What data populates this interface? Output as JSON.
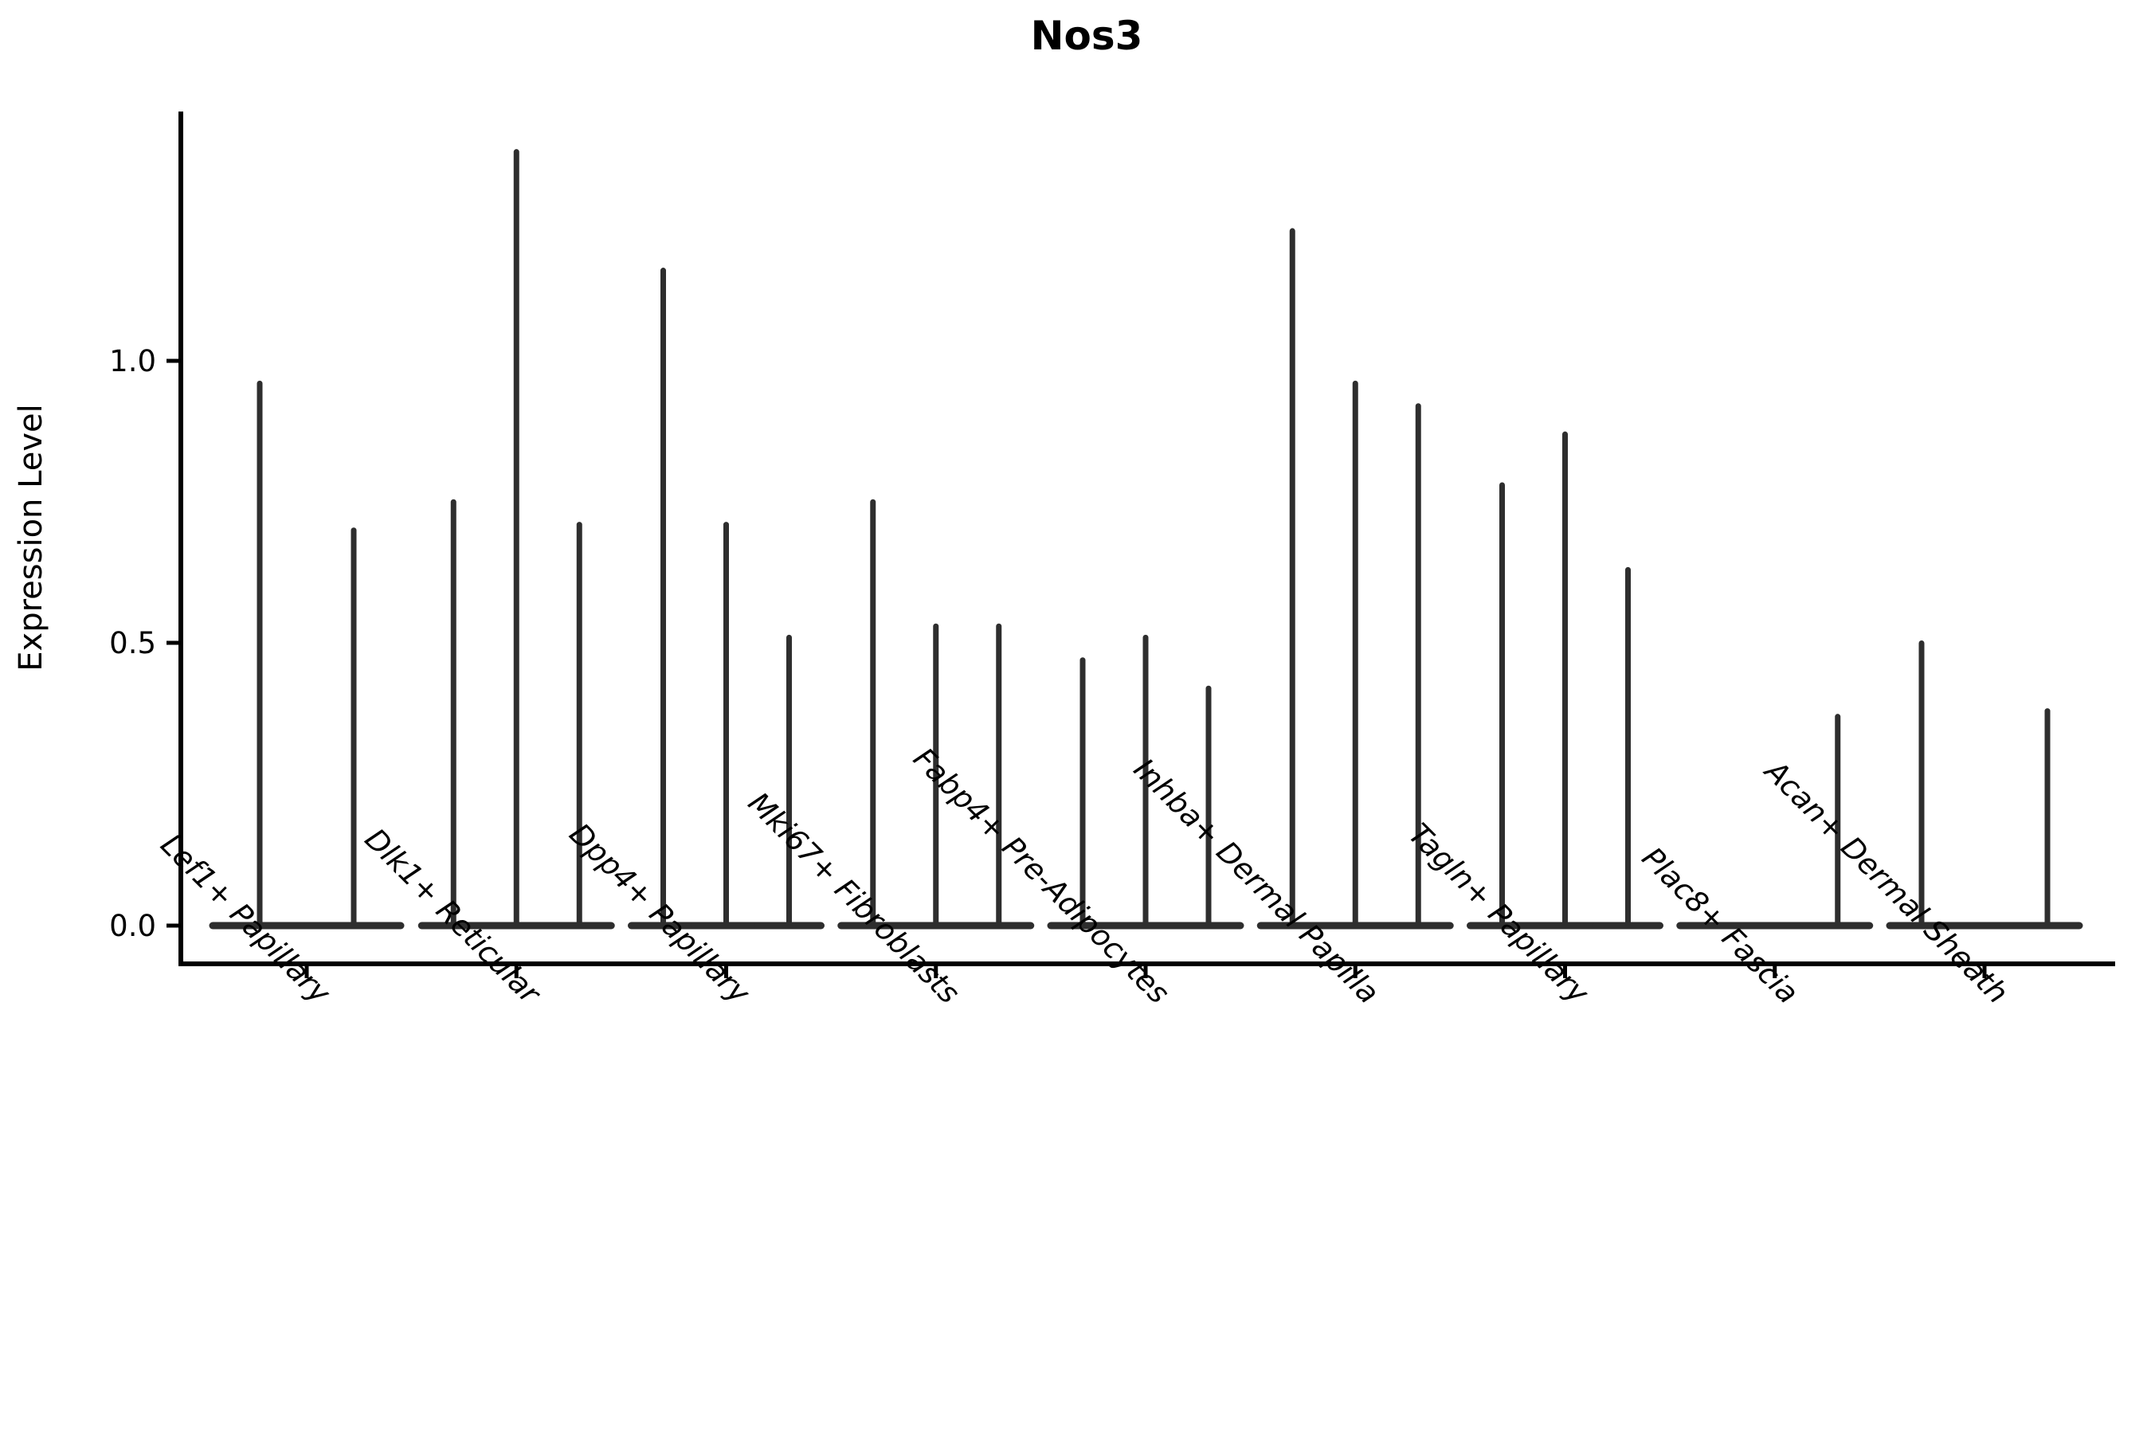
{
  "chart_data": {
    "type": "violin",
    "title": "Nos3",
    "ylabel": "Expression Level",
    "xlabel": "",
    "ylim": [
      -0.07,
      1.44
    ],
    "yticks": [
      0.0,
      0.5,
      1.0
    ],
    "ytick_labels": [
      "0.0",
      "0.5",
      "1.0"
    ],
    "grid": "off",
    "legend": "none",
    "categories": [
      "Lef1+ Papillary",
      "Dlk1+ Reticular",
      "Dpp4+ Papillary",
      "Mki67+ Fibroblasts",
      "Fabp4+ Pre-Adipocytes",
      "Inhba+ Dermal Papilla",
      "Tagln+ Papillary",
      "Plac8+ Fascia",
      "Acan+ Dermal Sheath"
    ],
    "groups": [
      {
        "category": "Lef1+ Papillary",
        "violin_maxima": [
          0.96,
          0.7
        ]
      },
      {
        "category": "Dlk1+ Reticular",
        "violin_maxima": [
          0.75,
          1.37,
          0.71
        ]
      },
      {
        "category": "Dpp4+ Papillary",
        "violin_maxima": [
          1.16,
          0.71,
          0.51
        ]
      },
      {
        "category": "Mki67+ Fibroblasts",
        "violin_maxima": [
          0.75,
          0.53,
          0.53
        ]
      },
      {
        "category": "Fabp4+ Pre-Adipocytes",
        "violin_maxima": [
          0.47,
          0.51,
          0.42
        ]
      },
      {
        "category": "Inhba+ Dermal Papilla",
        "violin_maxima": [
          1.23,
          0.96,
          0.92
        ]
      },
      {
        "category": "Tagln+ Papillary",
        "violin_maxima": [
          0.78,
          0.87,
          0.63
        ]
      },
      {
        "category": "Plac8+ Fascia",
        "violin_maxima": [
          0.0,
          0.0,
          0.37
        ]
      },
      {
        "category": "Acan+ Dermal Sheath",
        "violin_maxima": [
          0.5,
          0.0,
          0.38
        ]
      }
    ],
    "colors": {
      "violin": "#2e2e2e",
      "spine": "#000000",
      "text": "#000000",
      "background": "#ffffff"
    }
  }
}
